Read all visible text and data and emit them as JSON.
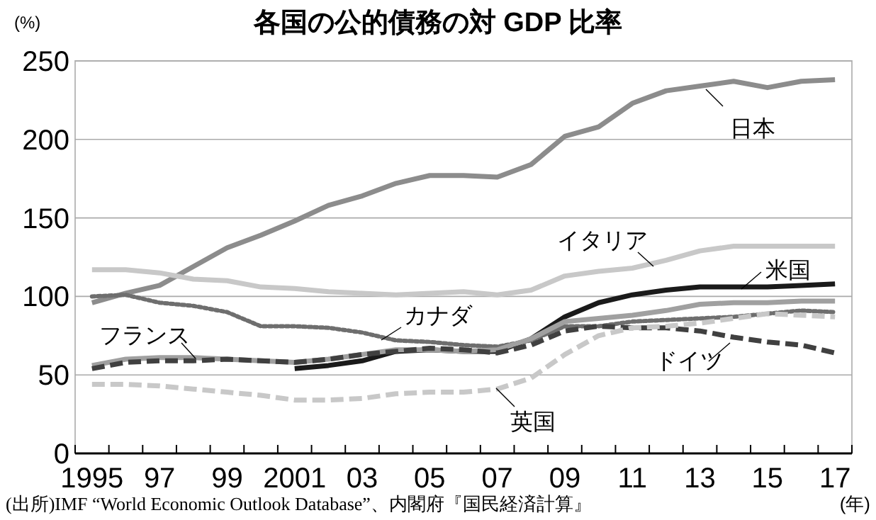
{
  "chart_data": {
    "type": "line",
    "title": "各国の公的債務の対 GDP 比率",
    "ylabel": "(%)",
    "xlabel": "(年)",
    "annotations": [
      "(出所)IMF “World Economic Outlook Database”、内閣府『国民経済計算』"
    ],
    "x": [
      1995,
      1996,
      1997,
      1998,
      1999,
      2000,
      2001,
      2002,
      2003,
      2004,
      2005,
      2006,
      2007,
      2008,
      2009,
      2010,
      2011,
      2012,
      2013,
      2014,
      2015,
      2016,
      2017
    ],
    "xlim": [
      1994.5,
      2017.5
    ],
    "xticks": [
      {
        "value": 1995,
        "label": "1995"
      },
      {
        "value": 1997,
        "label": "97"
      },
      {
        "value": 1999,
        "label": "99"
      },
      {
        "value": 2001,
        "label": "2001"
      },
      {
        "value": 2003,
        "label": "03"
      },
      {
        "value": 2005,
        "label": "05"
      },
      {
        "value": 2007,
        "label": "07"
      },
      {
        "value": 2009,
        "label": "09"
      },
      {
        "value": 2011,
        "label": "11"
      },
      {
        "value": 2013,
        "label": "13"
      },
      {
        "value": 2015,
        "label": "15"
      },
      {
        "value": 2017,
        "label": "17"
      }
    ],
    "ylim": [
      0,
      250
    ],
    "yticks": [
      0,
      50,
      100,
      150,
      200,
      250
    ],
    "grid": "y",
    "legend": false,
    "series": [
      {
        "name": "日本",
        "color": "#8c8c8c",
        "line_style": "solid",
        "values": [
          96,
          102,
          107,
          119,
          131,
          139,
          148,
          158,
          164,
          172,
          177,
          177,
          176,
          184,
          202,
          208,
          223,
          231,
          234,
          237,
          233,
          237,
          238
        ]
      },
      {
        "name": "イタリア",
        "color": "#c8c8c8",
        "line_style": "solid",
        "values": [
          117,
          117,
          115,
          111,
          110,
          106,
          105,
          103,
          102,
          101,
          102,
          103,
          101,
          104,
          113,
          116,
          118,
          123,
          129,
          132,
          132,
          132,
          132
        ]
      },
      {
        "name": "米国",
        "color": "#1a1a1a",
        "line_style": "solid",
        "values": [
          null,
          null,
          null,
          null,
          null,
          null,
          54,
          56,
          59,
          65,
          66,
          65,
          65,
          73,
          87,
          96,
          101,
          104,
          106,
          106,
          106,
          107,
          108
        ]
      },
      {
        "name": "カナダ",
        "color": "#6e6e6e",
        "line_style": "dotted",
        "values": [
          100,
          101,
          96,
          94,
          90,
          81,
          81,
          80,
          77,
          72,
          71,
          69,
          68,
          72,
          81,
          81,
          84,
          85,
          86,
          87,
          89,
          91,
          90
        ]
      },
      {
        "name": "フランス",
        "color": "#a0a0a0",
        "line_style": "solid",
        "values": [
          56,
          60,
          61,
          61,
          60,
          59,
          58,
          60,
          63,
          66,
          66,
          65,
          66,
          73,
          84,
          86,
          88,
          91,
          95,
          96,
          96,
          97,
          97
        ]
      },
      {
        "name": "ドイツ",
        "color": "#404040",
        "line_style": "dashed",
        "values": [
          54,
          58,
          59,
          59,
          60,
          59,
          58,
          60,
          63,
          65,
          67,
          66,
          64,
          69,
          78,
          81,
          80,
          80,
          78,
          74,
          71,
          69,
          64
        ]
      },
      {
        "name": "英国",
        "color": "#c8c8c8",
        "line_style": "dashed",
        "values": [
          44,
          44,
          43,
          41,
          39,
          37,
          34,
          34,
          35,
          38,
          39,
          39,
          41,
          48,
          63,
          75,
          80,
          81,
          83,
          86,
          89,
          88,
          87
        ]
      }
    ]
  }
}
